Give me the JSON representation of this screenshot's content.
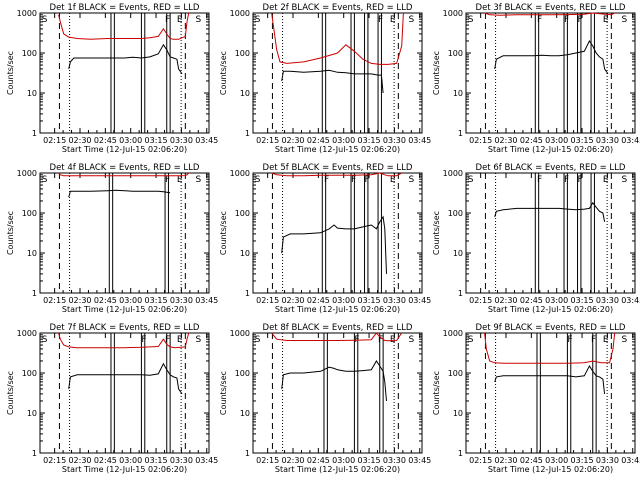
{
  "chart_data": [
    {
      "type": "line",
      "title": "Det 1f BLACK = Events, RED = LLD",
      "xlabel": "Start Time (12-Jul-15 02:06:20)",
      "ylabel": "Counts/sec",
      "x_ticks": [
        "02:15",
        "02:30",
        "02:45",
        "03:00",
        "03:15",
        "03:30",
        "03:45"
      ],
      "y_ticks": [
        "1",
        "10",
        "100",
        "1000"
      ],
      "y_scale": "log",
      "ylim": [
        1,
        1000
      ],
      "xlim_minutes": [
        0,
        100
      ],
      "marker_letters": [
        "S",
        "F",
        "E",
        "S"
      ],
      "series": [
        {
          "color": "#000000",
          "x": [
            17,
            18,
            20,
            25,
            30,
            35,
            40,
            45,
            50,
            55,
            60,
            65,
            70,
            73,
            75,
            77,
            79,
            81,
            82,
            84
          ],
          "y": [
            40,
            60,
            75,
            75,
            75,
            75,
            75,
            75,
            75,
            78,
            75,
            80,
            95,
            160,
            120,
            80,
            75,
            70,
            40,
            30
          ]
        },
        {
          "color": "#cc0000",
          "x": [
            11,
            12,
            14,
            17,
            22,
            30,
            40,
            50,
            60,
            65,
            70,
            73,
            75,
            77,
            79,
            82,
            86,
            87,
            88
          ],
          "y": [
            900,
            600,
            300,
            250,
            230,
            220,
            230,
            230,
            230,
            240,
            260,
            400,
            300,
            230,
            220,
            220,
            260,
            600,
            1000
          ]
        }
      ]
    },
    {
      "type": "line",
      "title": "Det 2f BLACK = Events, RED = LLD",
      "xlabel": "Start Time (12-Jul-15 02:06:20)",
      "ylabel": "Counts/sec",
      "x_ticks": [
        "02:15",
        "02:30",
        "02:45",
        "03:00",
        "03:15",
        "03:30",
        "03:45"
      ],
      "y_ticks": [
        "1",
        "10",
        "100",
        "1000"
      ],
      "y_scale": "log",
      "ylim": [
        1,
        1000
      ],
      "xlim_minutes": [
        0,
        100
      ],
      "marker_letters": [
        "S",
        "F",
        "E",
        "S"
      ],
      "series": [
        {
          "color": "#000000",
          "x": [
            17,
            18,
            22,
            30,
            40,
            45,
            50,
            55,
            60,
            65,
            70,
            74,
            76,
            77
          ],
          "y": [
            20,
            35,
            35,
            33,
            35,
            37,
            33,
            32,
            30,
            30,
            30,
            28,
            28,
            10
          ]
        },
        {
          "color": "#cc0000",
          "x": [
            11,
            12,
            14,
            16,
            20,
            30,
            40,
            50,
            55,
            60,
            65,
            70,
            75,
            80,
            85,
            88,
            89
          ],
          "y": [
            1000,
            500,
            120,
            60,
            55,
            60,
            75,
            100,
            160,
            110,
            70,
            55,
            52,
            52,
            55,
            150,
            1000
          ]
        }
      ]
    },
    {
      "type": "line",
      "title": "Det 3f BLACK = Events, RED = LLD",
      "xlabel": "Start Time (12-Jul-15 02:06:20)",
      "ylabel": "Counts/sec",
      "x_ticks": [
        "02:15",
        "02:30",
        "02:45",
        "03:00",
        "03:15",
        "03:30",
        "03:45"
      ],
      "y_ticks": [
        "1",
        "10",
        "100",
        "1000"
      ],
      "y_scale": "log",
      "ylim": [
        1,
        1000
      ],
      "xlim_minutes": [
        0,
        100
      ],
      "marker_letters": [
        "S",
        "F",
        "F",
        "F",
        "E",
        "S"
      ],
      "series": [
        {
          "color": "#000000",
          "x": [
            17,
            18,
            22,
            30,
            40,
            45,
            50,
            55,
            60,
            65,
            70,
            73,
            75,
            77,
            79,
            81,
            82,
            84
          ],
          "y": [
            40,
            70,
            85,
            85,
            85,
            88,
            85,
            85,
            90,
            100,
            110,
            200,
            150,
            100,
            80,
            70,
            40,
            30
          ]
        },
        {
          "color": "#cc0000",
          "x": [
            11,
            14,
            20,
            30,
            40,
            50,
            60,
            70,
            75,
            80,
            86,
            88
          ],
          "y": [
            1000,
            900,
            880,
            900,
            900,
            900,
            910,
            930,
            1000,
            950,
            900,
            1000
          ]
        }
      ]
    },
    {
      "type": "line",
      "title": "Det 4f BLACK = Events, RED = LLD",
      "xlabel": "Start Time (12-Jul-15 02:06:20)",
      "ylabel": "Counts/sec",
      "x_ticks": [
        "02:15",
        "02:30",
        "02:45",
        "03:00",
        "03:15",
        "03:30",
        "03:45"
      ],
      "y_ticks": [
        "1",
        "10",
        "100",
        "1000"
      ],
      "y_scale": "log",
      "ylim": [
        1,
        1000
      ],
      "xlim_minutes": [
        0,
        100
      ],
      "marker_letters": [
        "S",
        "F",
        "E",
        "S"
      ],
      "series": [
        {
          "color": "#000000",
          "x": [
            17,
            18,
            22,
            30,
            40,
            45,
            50,
            55,
            60,
            65,
            70,
            73,
            75,
            77
          ],
          "y": [
            250,
            350,
            350,
            350,
            360,
            370,
            360,
            350,
            350,
            350,
            350,
            340,
            330,
            320
          ]
        },
        {
          "color": "#cc0000",
          "x": [
            11,
            12,
            14,
            20,
            30,
            40,
            50,
            60,
            70,
            80,
            86,
            87,
            88
          ],
          "y": [
            1000,
            900,
            850,
            850,
            850,
            850,
            850,
            850,
            850,
            850,
            860,
            900,
            1000
          ]
        }
      ]
    },
    {
      "type": "line",
      "title": "Det 5f BLACK = Events, RED = LLD",
      "xlabel": "Start Time (12-Jul-15 02:06:20)",
      "ylabel": "Counts/sec",
      "x_ticks": [
        "02:15",
        "02:30",
        "02:45",
        "03:00",
        "03:15",
        "03:30",
        "03:45"
      ],
      "y_ticks": [
        "1",
        "10",
        "100",
        "1000"
      ],
      "y_scale": "log",
      "ylim": [
        1,
        1000
      ],
      "xlim_minutes": [
        0,
        100
      ],
      "marker_letters": [
        "S",
        "F",
        "F",
        "F",
        "E",
        "S"
      ],
      "series": [
        {
          "color": "#000000",
          "x": [
            17,
            18,
            22,
            30,
            40,
            45,
            48,
            50,
            55,
            60,
            65,
            70,
            73,
            75,
            77,
            78,
            79
          ],
          "y": [
            10,
            25,
            30,
            30,
            32,
            40,
            50,
            42,
            40,
            40,
            45,
            50,
            40,
            60,
            80,
            40,
            3
          ]
        },
        {
          "color": "#cc0000",
          "x": [
            11,
            14,
            20,
            30,
            40,
            50,
            60,
            70,
            75,
            78,
            80,
            85,
            88
          ],
          "y": [
            1000,
            900,
            850,
            850,
            880,
            880,
            880,
            900,
            1000,
            900,
            850,
            850,
            1000
          ]
        }
      ]
    },
    {
      "type": "line",
      "title": "Det 6f BLACK = Events, RED = LLD",
      "xlabel": "Start Time (12-Jul-15 02:06:20)",
      "ylabel": "Counts/sec",
      "x_ticks": [
        "02:15",
        "02:30",
        "02:45",
        "03:00",
        "03:15",
        "03:30",
        "03:45"
      ],
      "y_ticks": [
        "1",
        "10",
        "100",
        "1000"
      ],
      "y_scale": "log",
      "ylim": [
        1,
        1000
      ],
      "xlim_minutes": [
        0,
        100
      ],
      "marker_letters": [
        "S",
        "F",
        "F",
        "F",
        "E",
        "S"
      ],
      "series": [
        {
          "color": "#000000",
          "x": [
            17,
            18,
            22,
            30,
            40,
            50,
            55,
            60,
            65,
            70,
            73,
            75,
            77,
            79,
            81,
            82
          ],
          "y": [
            80,
            110,
            120,
            130,
            130,
            130,
            130,
            125,
            120,
            125,
            130,
            180,
            140,
            110,
            100,
            60
          ]
        }
      ]
    },
    {
      "type": "line",
      "title": "Det 7f BLACK = Events, RED = LLD",
      "xlabel": "Start Time (12-Jul-15 02:06:20)",
      "ylabel": "Counts/sec",
      "x_ticks": [
        "02:15",
        "02:30",
        "02:45",
        "03:00",
        "03:15",
        "03:30",
        "03:45"
      ],
      "y_ticks": [
        "1",
        "10",
        "100",
        "1000"
      ],
      "y_scale": "log",
      "ylim": [
        1,
        1000
      ],
      "xlim_minutes": [
        0,
        100
      ],
      "marker_letters": [
        "S",
        "F",
        "F",
        "E",
        "S"
      ],
      "series": [
        {
          "color": "#000000",
          "x": [
            17,
            18,
            22,
            30,
            40,
            50,
            60,
            65,
            70,
            73,
            75,
            77,
            79,
            81,
            82,
            84
          ],
          "y": [
            40,
            80,
            90,
            90,
            90,
            90,
            90,
            88,
            95,
            170,
            120,
            90,
            80,
            75,
            40,
            30
          ]
        },
        {
          "color": "#cc0000",
          "x": [
            11,
            12,
            14,
            17,
            22,
            30,
            40,
            50,
            60,
            70,
            73,
            75,
            77,
            80,
            86,
            87,
            88
          ],
          "y": [
            1000,
            700,
            500,
            450,
            430,
            430,
            430,
            430,
            440,
            460,
            700,
            520,
            450,
            430,
            450,
            700,
            1000
          ]
        }
      ]
    },
    {
      "type": "line",
      "title": "Det 8f BLACK = Events, RED = LLD",
      "xlabel": "Start Time (12-Jul-15 02:06:20)",
      "ylabel": "Counts/sec",
      "x_ticks": [
        "02:15",
        "02:30",
        "02:45",
        "03:00",
        "03:15",
        "03:30",
        "03:45"
      ],
      "y_ticks": [
        "1",
        "10",
        "100",
        "1000"
      ],
      "y_scale": "log",
      "ylim": [
        1,
        1000
      ],
      "xlim_minutes": [
        0,
        100
      ],
      "marker_letters": [
        "S",
        "F",
        "F",
        "E",
        "S"
      ],
      "series": [
        {
          "color": "#000000",
          "x": [
            17,
            18,
            22,
            30,
            40,
            45,
            48,
            50,
            55,
            60,
            65,
            70,
            73,
            75,
            77,
            78,
            79
          ],
          "y": [
            40,
            90,
            100,
            100,
            110,
            140,
            130,
            120,
            110,
            110,
            115,
            120,
            200,
            150,
            110,
            60,
            20
          ]
        },
        {
          "color": "#cc0000",
          "x": [
            11,
            14,
            20,
            30,
            40,
            50,
            60,
            70,
            73,
            75,
            78,
            80,
            85,
            88
          ],
          "y": [
            1000,
            700,
            650,
            650,
            650,
            650,
            660,
            680,
            1000,
            800,
            650,
            640,
            650,
            1000
          ]
        }
      ]
    },
    {
      "type": "line",
      "title": "Det 9f BLACK = Events, RED = LLD",
      "xlabel": "Start Time (12-Jul-15 02:06:20)",
      "ylabel": "Counts/sec",
      "x_ticks": [
        "02:15",
        "02:30",
        "02:45",
        "03:00",
        "03:15",
        "03:30",
        "03:45"
      ],
      "y_ticks": [
        "1",
        "10",
        "100",
        "1000"
      ],
      "y_scale": "log",
      "ylim": [
        1,
        1000
      ],
      "xlim_minutes": [
        0,
        100
      ],
      "marker_letters": [
        "S",
        "F",
        "F",
        "E",
        "S"
      ],
      "series": [
        {
          "color": "#000000",
          "x": [
            17,
            18,
            22,
            30,
            40,
            50,
            60,
            65,
            70,
            73,
            75,
            77,
            79,
            81,
            82
          ],
          "y": [
            60,
            80,
            85,
            85,
            85,
            85,
            85,
            80,
            85,
            150,
            110,
            85,
            80,
            70,
            30
          ]
        },
        {
          "color": "#cc0000",
          "x": [
            11,
            12,
            14,
            17,
            22,
            30,
            40,
            50,
            60,
            70,
            75,
            80,
            85,
            87,
            88
          ],
          "y": [
            1000,
            400,
            200,
            180,
            175,
            175,
            175,
            175,
            175,
            180,
            200,
            180,
            180,
            400,
            1000
          ]
        }
      ]
    }
  ]
}
